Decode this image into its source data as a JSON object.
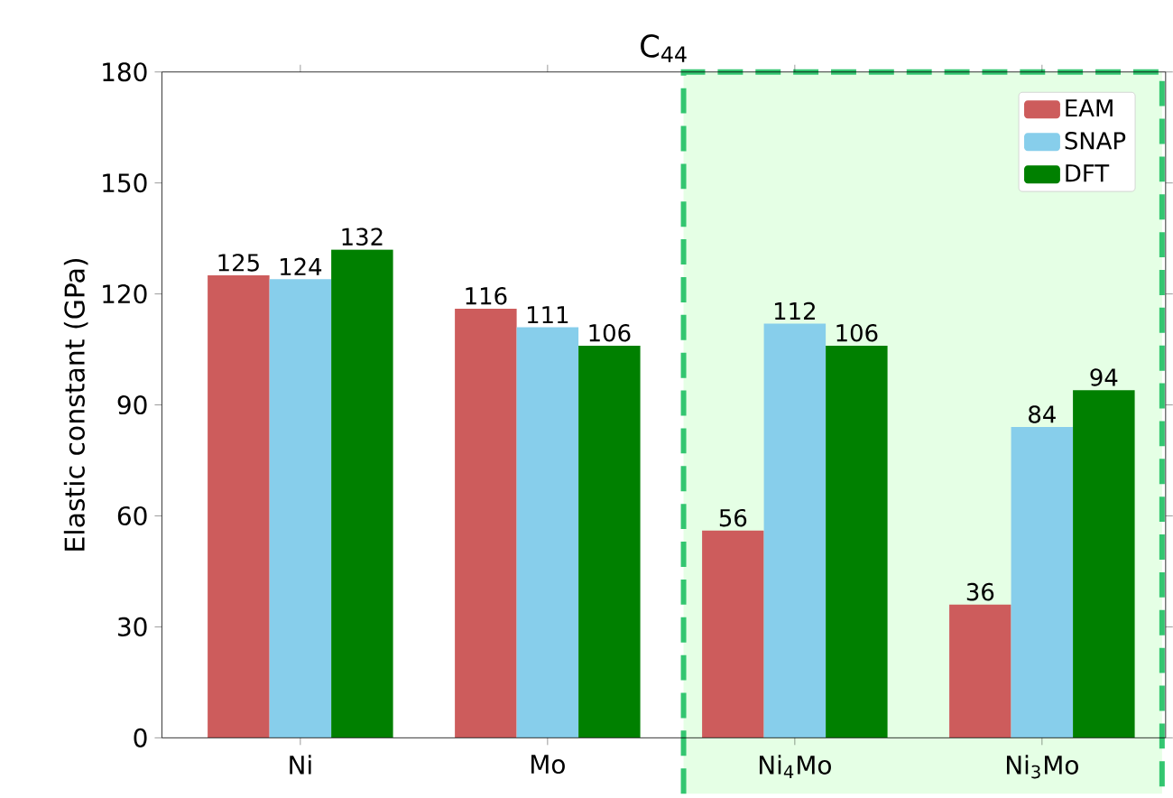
{
  "chart_data": {
    "type": "bar",
    "title": "C$_{44}$",
    "ylabel": "Elastic constant (GPa)",
    "categories": [
      "Ni",
      "Mo",
      "Ni$_{4}$Mo",
      "Ni$_{3}$Mo"
    ],
    "series": [
      {
        "name": "EAM",
        "color": "#cd5c5c",
        "values": [
          125,
          116,
          56,
          36
        ]
      },
      {
        "name": "SNAP",
        "color": "#87ceeb",
        "values": [
          124,
          111,
          112,
          84
        ]
      },
      {
        "name": "DFT",
        "color": "#008000",
        "values": [
          132,
          106,
          106,
          94
        ]
      }
    ],
    "ylim": [
      0,
      180
    ],
    "yticks": [
      0,
      30,
      60,
      90,
      120,
      150,
      180
    ],
    "data_labels": true,
    "legend": "top right"
  }
}
